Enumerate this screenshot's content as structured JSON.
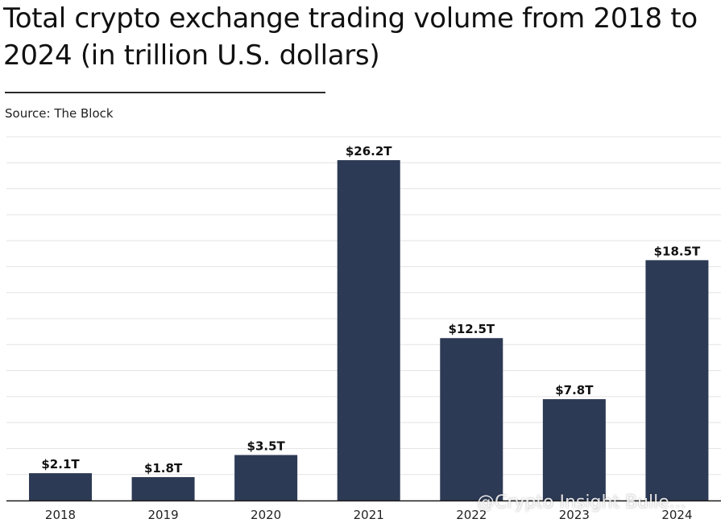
{
  "chart_data": {
    "type": "bar",
    "title": "Total crypto exchange trading volume from 2018 to 2024 (in trillion U.S. dollars)",
    "source": "Source: The Block",
    "categories": [
      "2018",
      "2019",
      "2020",
      "2021",
      "2022",
      "2023",
      "2024"
    ],
    "values": [
      2.1,
      1.8,
      3.5,
      26.2,
      12.5,
      7.8,
      18.5
    ],
    "data_labels": [
      "$2.1T",
      "$1.8T",
      "$3.5T",
      "$26.2T",
      "$12.5T",
      "$7.8T",
      "$18.5T"
    ],
    "xlabel": "",
    "ylabel": "",
    "ylim": [
      0,
      28
    ],
    "grid": true,
    "bar_color": "#2d3a55",
    "gridline_color": "#e3e3e3"
  },
  "watermark": "@Crypto Insight Bulle..."
}
